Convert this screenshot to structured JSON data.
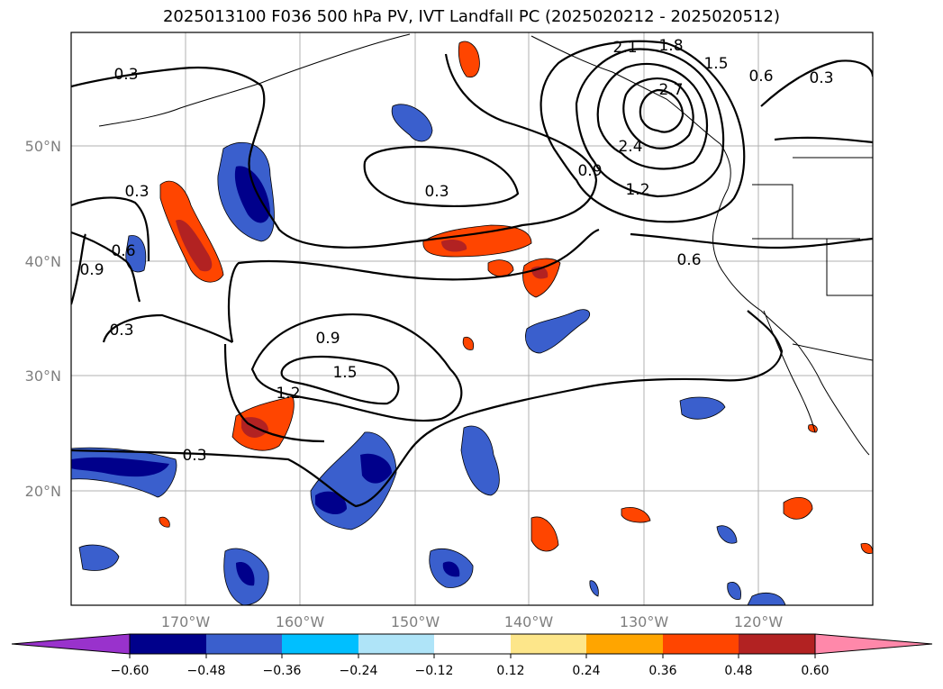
{
  "title": "2025013100 F036 500 hPa PV, IVT Landfall PC (2025020212 - 2025020512)",
  "axes": {
    "lat_labels": [
      "50°N",
      "40°N",
      "30°N",
      "20°N"
    ],
    "lon_labels": [
      "170°W",
      "160°W",
      "150°W",
      "140°W",
      "130°W",
      "120°W"
    ]
  },
  "contour_labels": [
    "0.3",
    "0.3",
    "0.3",
    "0.3",
    "0.3",
    "0.3",
    "0.6",
    "0.6",
    "0.6",
    "0.9",
    "0.9",
    "0.9",
    "1.2",
    "1.2",
    "1.5",
    "1.5",
    "1.8",
    "2.1",
    "2.4",
    "2.7"
  ],
  "colorbar": {
    "ticks": [
      "−0.60",
      "−0.48",
      "−0.36",
      "−0.24",
      "−0.12",
      "0.12",
      "0.24",
      "0.36",
      "0.48",
      "0.60"
    ],
    "colors": [
      "#9932cc",
      "#00008b",
      "#3a5fcd",
      "#00bfff",
      "#afe4f8",
      "#ffffff",
      "#fde68a",
      "#ffa500",
      "#ff4500",
      "#b22222",
      "#ff88aa"
    ]
  }
}
